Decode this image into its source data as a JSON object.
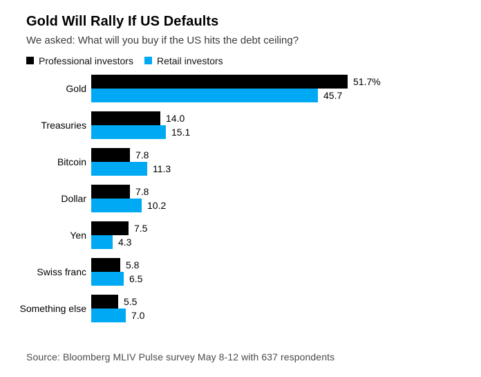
{
  "header": {
    "title": "Gold Will Rally If US Defaults",
    "subtitle": "We asked: What will you buy if the US hits the debt ceiling?"
  },
  "chart_data": {
    "type": "bar",
    "orientation": "horizontal",
    "title": "Gold Will Rally If US Defaults",
    "subtitle": "We asked: What will you buy if the US hits the debt ceiling?",
    "categories": [
      "Gold",
      "Treasuries",
      "Bitcoin",
      "Dollar",
      "Yen",
      "Swiss franc",
      "Something else"
    ],
    "series": [
      {
        "name": "Professional investors",
        "color": "#000000",
        "values": [
          51.7,
          14.0,
          7.8,
          7.8,
          7.5,
          5.8,
          5.5
        ],
        "labels": [
          "51.7%",
          "14.0",
          "7.8",
          "7.8",
          "7.5",
          "5.8",
          "5.5"
        ]
      },
      {
        "name": "Retail investors",
        "color": "#00a9f4",
        "values": [
          45.7,
          15.1,
          11.3,
          10.2,
          4.3,
          6.5,
          7.0
        ],
        "labels": [
          "45.7",
          "15.1",
          "11.3",
          "10.2",
          "4.3",
          "6.5",
          "7.0"
        ]
      }
    ],
    "unit": "%",
    "xlim": [
      0,
      51.7
    ],
    "grid": false,
    "legend_position": "top",
    "value_labels": "outside-end"
  },
  "footer": {
    "source": "Source: Bloomberg MLIV Pulse survey May 8-12 with 637 respondents"
  }
}
